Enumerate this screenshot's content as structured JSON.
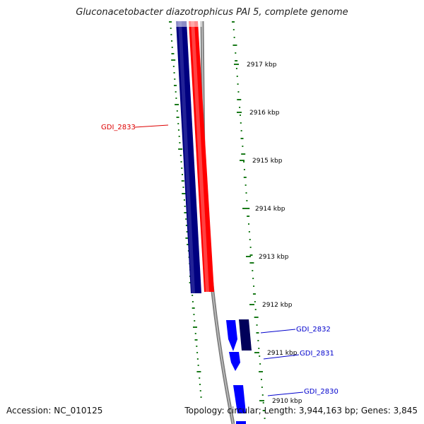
{
  "title": "Gluconacetobacter diazotrophicus PAI 5, complete genome",
  "footer": {
    "accession": "Accession: NC_010125",
    "summary": "Topology: circular; Length: 3,944,163 bp; Genes: 3,845"
  },
  "colors": {
    "forward_cds": "#000080",
    "reverse_cds": "#ff0000",
    "backbone": "#808080",
    "gene_arrow": "#0000ff",
    "gene_arrow_dark": "#00005a",
    "gc_marks": "#1a7a1a",
    "label_red": "#dd0000",
    "label_blue": "#0000cc",
    "tick_label": "#000000"
  },
  "scale": {
    "ticks": [
      {
        "kbp": 2917,
        "label": "2917 kbp"
      },
      {
        "kbp": 2916,
        "label": "2916 kbp"
      },
      {
        "kbp": 2915,
        "label": "2915 kbp"
      },
      {
        "kbp": 2914,
        "label": "2914 kbp"
      },
      {
        "kbp": 2913,
        "label": "2913 kbp"
      },
      {
        "kbp": 2912,
        "label": "2912 kbp"
      },
      {
        "kbp": 2911,
        "label": "2911 kbp"
      },
      {
        "kbp": 2910,
        "label": "2910 kbp"
      }
    ]
  },
  "genes": [
    {
      "id": "GDI_2833",
      "strand": "reverse"
    },
    {
      "id": "GDI_2832",
      "strand": "forward"
    },
    {
      "id": "GDI_2831",
      "strand": "forward"
    },
    {
      "id": "GDI_2830",
      "strand": "forward"
    }
  ]
}
